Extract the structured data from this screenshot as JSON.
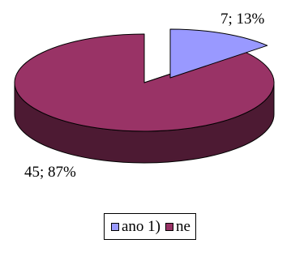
{
  "chart_data": {
    "type": "pie",
    "style": "3d-exploded",
    "categories": [
      "ano 1)",
      "ne"
    ],
    "values": [
      7,
      45
    ],
    "percent": [
      13,
      87
    ],
    "data_labels": [
      "7; 13%",
      "45; 87%"
    ],
    "legend_position": "bottom",
    "colors": {
      "ano 1)": {
        "top": "#9999ff",
        "side": "#4d4d80"
      },
      "ne": {
        "top": "#993366",
        "side": "#4d1a33"
      }
    }
  }
}
